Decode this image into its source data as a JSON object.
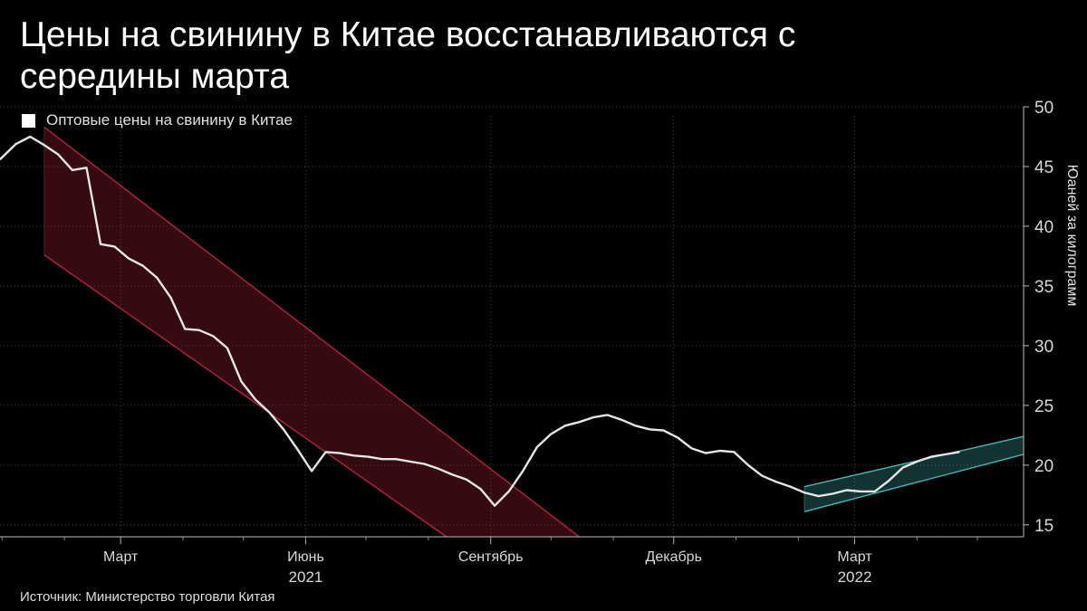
{
  "title": "Цены на свинину в Китае восстанавливаются с середины марта",
  "legend": {
    "label": "Оптовые цены на свинину в Китае"
  },
  "source": "Источник: Министерство торговли Китая",
  "colors": {
    "background": "#000000",
    "line": "#e6e6e6",
    "down_channel": "#8b1a2c",
    "up_channel": "#3fb7b5",
    "grid": "#444444"
  },
  "chart_data": {
    "type": "line",
    "title": "Цены на свинину в Китае восстанавливаются с середины марта",
    "ylabel": "Юаней за килограмм",
    "xlabel": "",
    "ylim": [
      14,
      50
    ],
    "y_ticks": [
      15,
      20,
      25,
      30,
      35,
      40,
      45,
      50
    ],
    "grid": true,
    "y_axis_side": "right",
    "x_ticks": [
      {
        "date": "2021-03-01",
        "label": "Март"
      },
      {
        "date": "2021-06-01",
        "label": "Июнь"
      },
      {
        "date": "2021-09-01",
        "label": "Сентябрь"
      },
      {
        "date": "2021-12-01",
        "label": "Декабрь"
      },
      {
        "date": "2022-03-01",
        "label": "Март"
      }
    ],
    "year_labels": [
      {
        "date": "2021-06-01",
        "label": "2021"
      },
      {
        "date": "2022-03-01",
        "label": "2022"
      }
    ],
    "xlim": [
      "2020-12-31",
      "2022-05-24"
    ],
    "series": [
      {
        "name": "Оптовые цены на свинину в Китае",
        "points": [
          [
            "2020-12-31",
            45.6
          ],
          [
            "2021-01-08",
            46.9
          ],
          [
            "2021-01-15",
            47.5
          ],
          [
            "2021-01-22",
            46.8
          ],
          [
            "2021-01-29",
            46.0
          ],
          [
            "2021-02-05",
            44.7
          ],
          [
            "2021-02-12",
            44.9
          ],
          [
            "2021-02-19",
            38.5
          ],
          [
            "2021-02-26",
            38.3
          ],
          [
            "2021-03-05",
            37.3
          ],
          [
            "2021-03-12",
            36.7
          ],
          [
            "2021-03-19",
            35.7
          ],
          [
            "2021-03-26",
            34.0
          ],
          [
            "2021-04-02",
            31.4
          ],
          [
            "2021-04-09",
            31.3
          ],
          [
            "2021-04-16",
            30.8
          ],
          [
            "2021-04-23",
            29.8
          ],
          [
            "2021-04-30",
            27.0
          ],
          [
            "2021-05-07",
            25.5
          ],
          [
            "2021-05-14",
            24.4
          ],
          [
            "2021-05-21",
            23.0
          ],
          [
            "2021-05-28",
            21.3
          ],
          [
            "2021-06-04",
            19.5
          ],
          [
            "2021-06-11",
            21.1
          ],
          [
            "2021-06-18",
            21.0
          ],
          [
            "2021-06-25",
            20.8
          ],
          [
            "2021-07-02",
            20.7
          ],
          [
            "2021-07-09",
            20.5
          ],
          [
            "2021-07-16",
            20.5
          ],
          [
            "2021-07-23",
            20.3
          ],
          [
            "2021-07-30",
            20.1
          ],
          [
            "2021-08-06",
            19.7
          ],
          [
            "2021-08-13",
            19.2
          ],
          [
            "2021-08-20",
            18.8
          ],
          [
            "2021-08-27",
            18.0
          ],
          [
            "2021-09-03",
            16.6
          ],
          [
            "2021-09-10",
            17.8
          ],
          [
            "2021-09-17",
            19.5
          ],
          [
            "2021-09-24",
            21.5
          ],
          [
            "2021-10-01",
            22.6
          ],
          [
            "2021-10-08",
            23.3
          ],
          [
            "2021-10-15",
            23.6
          ],
          [
            "2021-10-22",
            24.0
          ],
          [
            "2021-10-29",
            24.2
          ],
          [
            "2021-11-05",
            23.8
          ],
          [
            "2021-11-12",
            23.3
          ],
          [
            "2021-11-19",
            23.0
          ],
          [
            "2021-11-26",
            22.9
          ],
          [
            "2021-12-03",
            22.3
          ],
          [
            "2021-12-10",
            21.4
          ],
          [
            "2021-12-17",
            21.0
          ],
          [
            "2021-12-24",
            21.2
          ],
          [
            "2021-12-31",
            21.1
          ],
          [
            "2022-01-07",
            20.0
          ],
          [
            "2022-01-14",
            19.1
          ],
          [
            "2022-01-21",
            18.6
          ],
          [
            "2022-01-28",
            18.2
          ],
          [
            "2022-02-04",
            17.7
          ],
          [
            "2022-02-11",
            17.4
          ],
          [
            "2022-02-18",
            17.6
          ],
          [
            "2022-02-25",
            17.9
          ],
          [
            "2022-03-04",
            17.8
          ],
          [
            "2022-03-11",
            17.8
          ],
          [
            "2022-03-18",
            18.7
          ],
          [
            "2022-03-25",
            19.8
          ],
          [
            "2022-04-01",
            20.3
          ],
          [
            "2022-04-08",
            20.7
          ],
          [
            "2022-04-15",
            20.9
          ],
          [
            "2022-04-22",
            21.1
          ]
        ]
      }
    ],
    "annotations": [
      {
        "type": "channel",
        "trend": "down",
        "color": "#8b1a2c",
        "upper": [
          [
            "2021-01-22",
            48.3
          ],
          [
            "2021-10-15",
            14.0
          ]
        ],
        "lower": [
          [
            "2021-01-22",
            37.6
          ],
          [
            "2021-08-10",
            14.0
          ]
        ]
      },
      {
        "type": "channel",
        "trend": "up",
        "color": "#3fb7b5",
        "upper": [
          [
            "2022-02-04",
            18.2
          ],
          [
            "2022-05-24",
            22.4
          ]
        ],
        "lower": [
          [
            "2022-02-04",
            16.1
          ],
          [
            "2022-05-24",
            20.9
          ]
        ]
      }
    ]
  }
}
